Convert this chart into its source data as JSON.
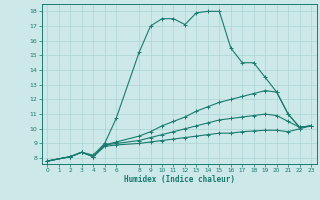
{
  "xlabel": "Humidex (Indice chaleur)",
  "bg_color": "#cce8e8",
  "line_color": "#1a7a6e",
  "grid_color": "#aad4d4",
  "xlim": [
    -0.5,
    23.5
  ],
  "ylim": [
    7.6,
    18.5
  ],
  "xticks": [
    0,
    1,
    2,
    3,
    4,
    5,
    6,
    8,
    9,
    10,
    11,
    12,
    13,
    14,
    15,
    16,
    17,
    18,
    19,
    20,
    21,
    22,
    23
  ],
  "yticks": [
    8,
    9,
    10,
    11,
    12,
    13,
    14,
    15,
    16,
    17,
    18
  ],
  "lines": [
    {
      "x": [
        0,
        2,
        3,
        4,
        4,
        5,
        6,
        8,
        9,
        10,
        11,
        12,
        13,
        14,
        15,
        16,
        17,
        18,
        19,
        20,
        21,
        22,
        23
      ],
      "y": [
        7.8,
        8.1,
        8.4,
        8.2,
        8.2,
        9.0,
        10.7,
        15.2,
        17.0,
        17.5,
        17.5,
        17.1,
        17.9,
        18.0,
        18.0,
        15.5,
        14.5,
        14.5,
        13.5,
        12.5,
        11.0,
        10.1,
        10.2
      ]
    },
    {
      "x": [
        0,
        2,
        3,
        4,
        5,
        6,
        8,
        9,
        10,
        11,
        12,
        13,
        14,
        15,
        16,
        17,
        18,
        19,
        20,
        21,
        22,
        23
      ],
      "y": [
        7.8,
        8.1,
        8.4,
        8.1,
        8.9,
        9.1,
        9.5,
        9.8,
        10.2,
        10.5,
        10.8,
        11.2,
        11.5,
        11.8,
        12.0,
        12.2,
        12.4,
        12.6,
        12.5,
        11.0,
        10.1,
        10.2
      ]
    },
    {
      "x": [
        0,
        2,
        3,
        4,
        5,
        6,
        8,
        9,
        10,
        11,
        12,
        13,
        14,
        15,
        16,
        17,
        18,
        19,
        20,
        21,
        22,
        23
      ],
      "y": [
        7.8,
        8.1,
        8.4,
        8.1,
        8.9,
        9.0,
        9.2,
        9.4,
        9.6,
        9.8,
        10.0,
        10.2,
        10.4,
        10.6,
        10.7,
        10.8,
        10.9,
        11.0,
        10.9,
        10.5,
        10.1,
        10.2
      ]
    },
    {
      "x": [
        0,
        2,
        3,
        4,
        5,
        6,
        8,
        9,
        10,
        11,
        12,
        13,
        14,
        15,
        16,
        17,
        18,
        19,
        20,
        21,
        22,
        23
      ],
      "y": [
        7.8,
        8.1,
        8.4,
        8.1,
        8.8,
        8.9,
        9.0,
        9.1,
        9.2,
        9.3,
        9.4,
        9.5,
        9.6,
        9.7,
        9.7,
        9.8,
        9.85,
        9.9,
        9.9,
        9.8,
        10.0,
        10.2
      ]
    }
  ]
}
